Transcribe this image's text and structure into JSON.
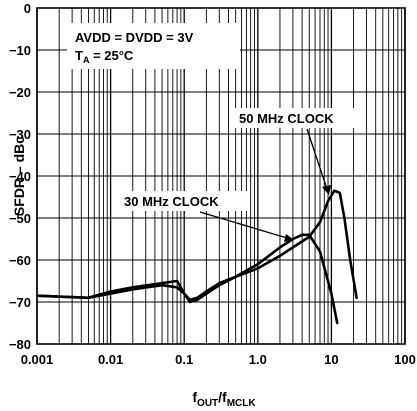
{
  "chart_data": {
    "type": "line",
    "xlabel": {
      "main": "f",
      "sub1": "OUT",
      "sep": "/f",
      "sub2": "MCLK"
    },
    "ylabel": "SFDR – dBc",
    "xscale": "log",
    "xlim": [
      0.001,
      100
    ],
    "ylim": [
      -80,
      0
    ],
    "grid": true,
    "x_ticks": [
      {
        "value": 0.001,
        "label": "0.001"
      },
      {
        "value": 0.01,
        "label": "0.01"
      },
      {
        "value": 0.1,
        "label": "0.1"
      },
      {
        "value": 1,
        "label": "1.0"
      },
      {
        "value": 10,
        "label": "10"
      },
      {
        "value": 100,
        "label": "100"
      }
    ],
    "y_ticks": [
      0,
      -10,
      -20,
      -30,
      -40,
      -50,
      -60,
      -70,
      -80
    ],
    "conditions": {
      "line1": "AVDD = DVDD = 3V",
      "line2_main": "T",
      "line2_sub": "A",
      "line2_rest": " = 25°C"
    },
    "series": [
      {
        "name": "30 MHz CLOCK",
        "x": [
          0.001,
          0.005,
          0.01,
          0.02,
          0.05,
          0.08,
          0.1,
          0.12,
          0.15,
          0.2,
          0.3,
          0.5,
          1,
          2,
          3,
          4,
          5,
          7,
          10,
          12
        ],
        "y": [
          -68.5,
          -69,
          -68,
          -67,
          -66,
          -66.5,
          -68,
          -70,
          -69.5,
          -68,
          -66,
          -64,
          -61,
          -57,
          -55,
          -54,
          -54,
          -58,
          -68,
          -75
        ]
      },
      {
        "name": "50 MHz CLOCK",
        "x": [
          0.001,
          0.005,
          0.01,
          0.02,
          0.05,
          0.08,
          0.1,
          0.12,
          0.15,
          0.2,
          0.3,
          0.5,
          1,
          2,
          3,
          5,
          7,
          9,
          11,
          13,
          15,
          18,
          22
        ],
        "y": [
          -68.5,
          -69,
          -67.5,
          -66.5,
          -65.5,
          -65,
          -68,
          -69.5,
          -69,
          -67.5,
          -65.5,
          -64,
          -62,
          -59,
          -57,
          -54.5,
          -51,
          -46,
          -43.5,
          -44,
          -50,
          -60,
          -69
        ]
      }
    ],
    "annotations": [
      {
        "text": "50 MHz CLOCK",
        "series": 1
      },
      {
        "text": "30 MHz CLOCK",
        "series": 0
      }
    ]
  }
}
